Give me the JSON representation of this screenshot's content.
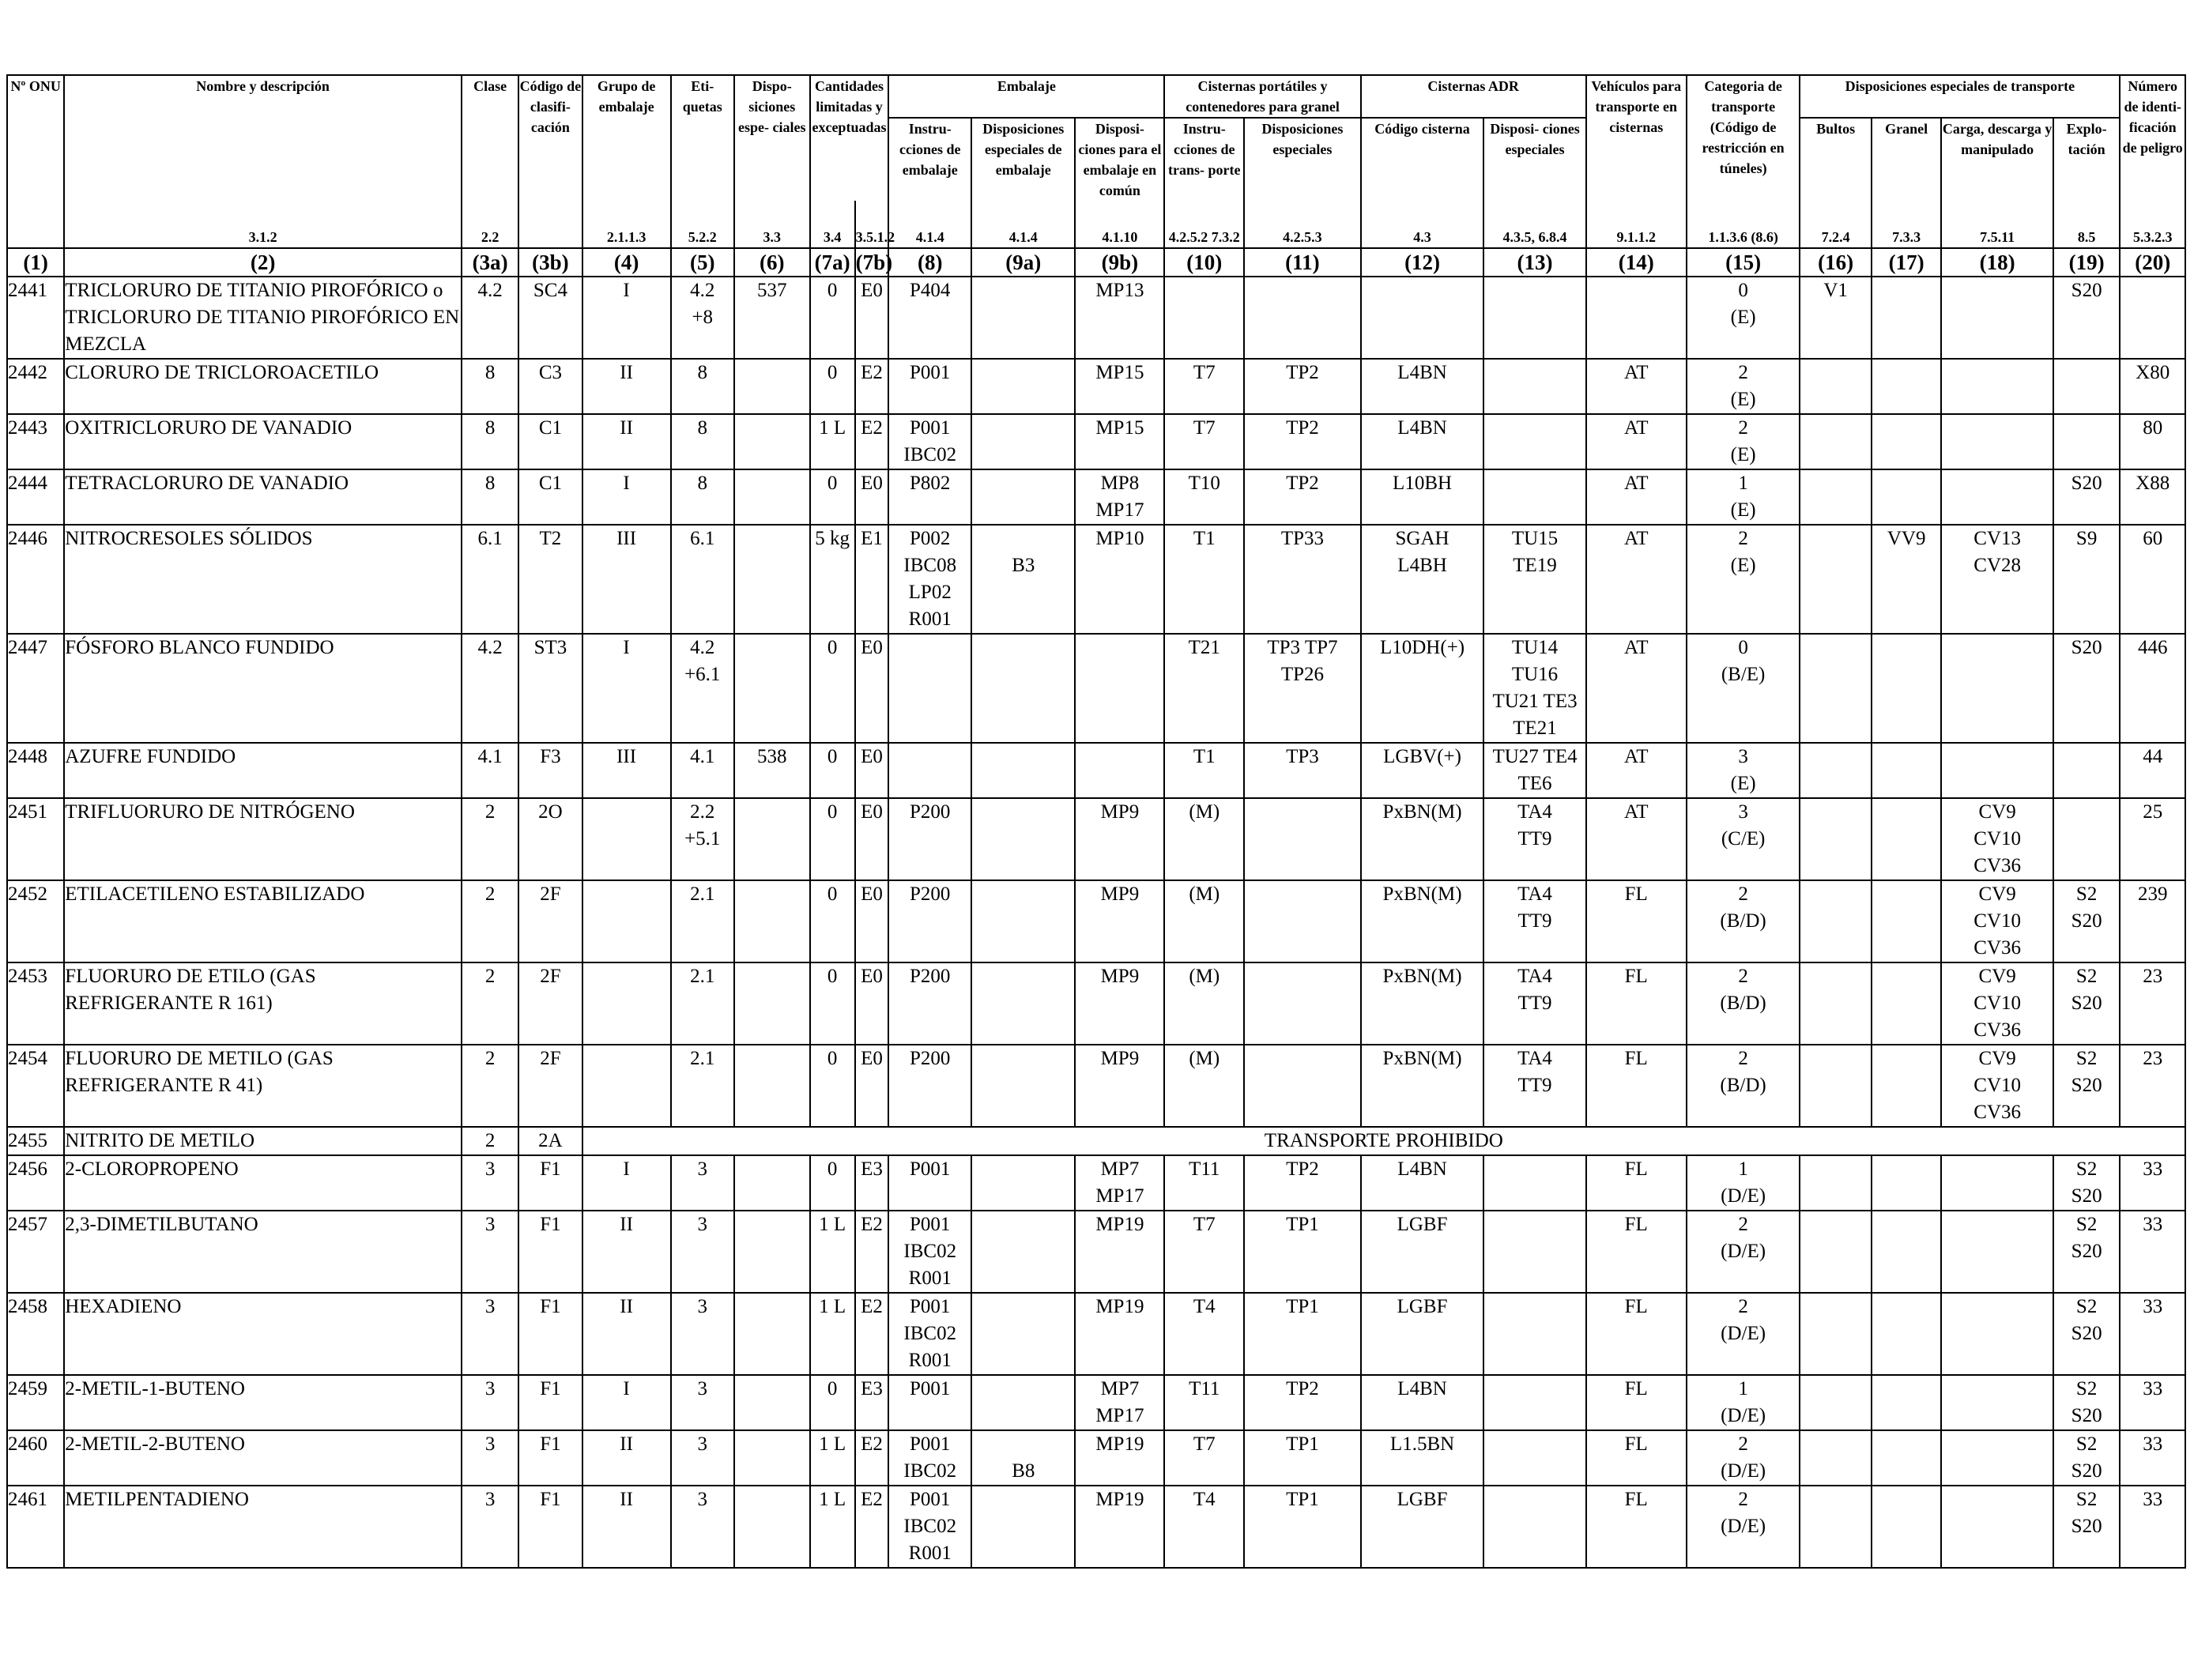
{
  "headers": {
    "un": "Nº ONU",
    "name": "Nombre y descripción",
    "class": "Clase",
    "code": "Código de clasifi- cación",
    "pg": "Grupo de embalaje",
    "labels": "Eti- quetas",
    "sp": "Dispo- siciones espe- ciales",
    "lq": "Cantidades limitadas y exceptuadas",
    "packaging": "Embalaje",
    "pi": "Instru- cciones de embalaje",
    "psp": "Disposiciones especiales de embalaje",
    "mp": "Disposi- ciones para el embalaje en común",
    "portable": "Cisternas portátiles y contenedores para granel",
    "tinstr": "Instru- cciones de trans- porte",
    "tsp": "Disposiciones especiales",
    "adr": "Cisternas ADR",
    "tcode": "Código cisterna",
    "adrsp": "Disposi- ciones especiales",
    "veh": "Vehículos para transporte en cisternas",
    "cat": "Categoria de transporte (Código de restricción en túneles)",
    "special": "Disposiciones especiales de transporte",
    "bultos": "Bultos",
    "granel": "Granel",
    "carga": "Carga, descarga y manipulado",
    "explo": "Explo- tación",
    "hazid": "Número de identi- ficación de peligro"
  },
  "refs": [
    "3.1.2",
    "2.2",
    "2.1.1.3",
    "5.2.2",
    "3.3",
    "3.4",
    "3.5.1.2",
    "4.1.4",
    "4.1.4",
    "4.1.10",
    "4.2.5.2 7.3.2",
    "4.2.5.3",
    "4.3",
    "4.3.5, 6.8.4",
    "9.1.1.2",
    "1.1.3.6 (8.6)",
    "7.2.4",
    "7.3.3",
    "7.5.11",
    "8.5",
    "5.3.2.3"
  ],
  "colnums": [
    "(1)",
    "(2)",
    "(3a)",
    "(3b)",
    "(4)",
    "(5)",
    "(6)",
    "(7a)",
    "(7b)",
    "(8)",
    "(9a)",
    "(9b)",
    "(10)",
    "(11)",
    "(12)",
    "(13)",
    "(14)",
    "(15)",
    "(16)",
    "(17)",
    "(18)",
    "(19)",
    "(20)"
  ],
  "prohibited_text": "TRANSPORTE PROHIBIDO",
  "rows": [
    {
      "un": "2441",
      "name": "TRICLORURO DE TITANIO PIROFÓRICO o TRICLORURO DE TITANIO PIROFÓRICO EN MEZCLA",
      "c3a": "4.2",
      "c3b": "SC4",
      "c4": "I",
      "c5": [
        "4.2",
        "+8"
      ],
      "c6": "537",
      "c7a": "0",
      "c7b": "E0",
      "c8": [
        "P404"
      ],
      "c9a": [],
      "c9b": [
        "MP13"
      ],
      "c10": [],
      "c11": [],
      "c12": [],
      "c13": [],
      "c14": "",
      "c15": [
        "0",
        "(E)"
      ],
      "c16": "V1",
      "c17": "",
      "c18": [],
      "c19": [
        "S20"
      ],
      "c20": ""
    },
    {
      "un": "2442",
      "name": "CLORURO DE TRICLOROACETILO",
      "c3a": "8",
      "c3b": "C3",
      "c4": "II",
      "c5": [
        "8"
      ],
      "c6": "",
      "c7a": "0",
      "c7b": "E2",
      "c8": [
        "P001"
      ],
      "c9a": [],
      "c9b": [
        "MP15"
      ],
      "c10": [
        "T7"
      ],
      "c11": [
        "TP2"
      ],
      "c12": [
        "L4BN"
      ],
      "c13": [],
      "c14": "AT",
      "c15": [
        "2",
        "(E)"
      ],
      "c16": "",
      "c17": "",
      "c18": [],
      "c19": [],
      "c20": "X80"
    },
    {
      "un": "2443",
      "name": "OXITRICLORURO DE VANADIO",
      "c3a": "8",
      "c3b": "C1",
      "c4": "II",
      "c5": [
        "8"
      ],
      "c6": "",
      "c7a": "1 L",
      "c7b": "E2",
      "c8": [
        "P001",
        "IBC02"
      ],
      "c9a": [],
      "c9b": [
        "MP15"
      ],
      "c10": [
        "T7"
      ],
      "c11": [
        "TP2"
      ],
      "c12": [
        "L4BN"
      ],
      "c13": [],
      "c14": "AT",
      "c15": [
        "2",
        "(E)"
      ],
      "c16": "",
      "c17": "",
      "c18": [],
      "c19": [],
      "c20": "80"
    },
    {
      "un": "2444",
      "name": "TETRACLORURO DE VANADIO",
      "c3a": "8",
      "c3b": "C1",
      "c4": "I",
      "c5": [
        "8"
      ],
      "c6": "",
      "c7a": "0",
      "c7b": "E0",
      "c8": [
        "P802"
      ],
      "c9a": [],
      "c9b": [
        "MP8",
        "MP17"
      ],
      "c10": [
        "T10"
      ],
      "c11": [
        "TP2"
      ],
      "c12": [
        "L10BH"
      ],
      "c13": [],
      "c14": "AT",
      "c15": [
        "1",
        "(E)"
      ],
      "c16": "",
      "c17": "",
      "c18": [],
      "c19": [
        "S20"
      ],
      "c20": "X88"
    },
    {
      "un": "2446",
      "name": "NITROCRESOLES SÓLIDOS",
      "c3a": "6.1",
      "c3b": "T2",
      "c4": "III",
      "c5": [
        "6.1"
      ],
      "c6": "",
      "c7a": "5 kg",
      "c7b": "E1",
      "c8": [
        "P002",
        "IBC08",
        "LP02",
        "R001"
      ],
      "c9a": [
        "",
        "B3"
      ],
      "c9b": [
        "MP10"
      ],
      "c10": [
        "T1"
      ],
      "c11": [
        "TP33"
      ],
      "c12": [
        "SGAH",
        "L4BH"
      ],
      "c13": [
        "TU15",
        "TE19"
      ],
      "c14": "AT",
      "c15": [
        "2",
        "(E)"
      ],
      "c16": "",
      "c17": "VV9",
      "c18": [
        "CV13",
        "CV28"
      ],
      "c19": [
        "S9"
      ],
      "c20": "60"
    },
    {
      "un": "2447",
      "name": "FÓSFORO BLANCO FUNDIDO",
      "c3a": "4.2",
      "c3b": "ST3",
      "c4": "I",
      "c5": [
        "4.2",
        "+6.1"
      ],
      "c6": "",
      "c7a": "0",
      "c7b": "E0",
      "c8": [],
      "c9a": [],
      "c9b": [],
      "c10": [
        "T21"
      ],
      "c11": [
        "TP3 TP7",
        "TP26"
      ],
      "c12": [
        "L10DH(+)"
      ],
      "c13": [
        "TU14",
        "TU16",
        "TU21 TE3",
        "TE21"
      ],
      "c14": "AT",
      "c15": [
        "0",
        "(B/E)"
      ],
      "c16": "",
      "c17": "",
      "c18": [],
      "c19": [
        "S20"
      ],
      "c20": "446"
    },
    {
      "un": "2448",
      "name": "AZUFRE FUNDIDO",
      "c3a": "4.1",
      "c3b": "F3",
      "c4": "III",
      "c5": [
        "4.1"
      ],
      "c6": "538",
      "c7a": "0",
      "c7b": "E0",
      "c8": [],
      "c9a": [],
      "c9b": [],
      "c10": [
        "T1"
      ],
      "c11": [
        "TP3"
      ],
      "c12": [
        "LGBV(+)"
      ],
      "c13": [
        "TU27 TE4",
        "TE6"
      ],
      "c14": "AT",
      "c15": [
        "3",
        "(E)"
      ],
      "c16": "",
      "c17": "",
      "c18": [],
      "c19": [],
      "c20": "44"
    },
    {
      "un": "2451",
      "name": "TRIFLUORURO DE NITRÓGENO",
      "c3a": "2",
      "c3b": "2O",
      "c4": "",
      "c5": [
        "2.2",
        "+5.1"
      ],
      "c6": "",
      "c7a": "0",
      "c7b": "E0",
      "c8": [
        "P200"
      ],
      "c9a": [],
      "c9b": [
        "MP9"
      ],
      "c10": [
        "(M)"
      ],
      "c11": [],
      "c12": [
        "PxBN(M)"
      ],
      "c13": [
        "TA4",
        "TT9"
      ],
      "c14": "AT",
      "c15": [
        "3",
        "(C/E)"
      ],
      "c16": "",
      "c17": "",
      "c18": [
        "CV9",
        "CV10",
        "CV36"
      ],
      "c19": [],
      "c20": "25"
    },
    {
      "un": "2452",
      "name": "ETILACETILENO ESTABILIZADO",
      "c3a": "2",
      "c3b": "2F",
      "c4": "",
      "c5": [
        "2.1"
      ],
      "c6": "",
      "c7a": "0",
      "c7b": "E0",
      "c8": [
        "P200"
      ],
      "c9a": [],
      "c9b": [
        "MP9"
      ],
      "c10": [
        "(M)"
      ],
      "c11": [],
      "c12": [
        "PxBN(M)"
      ],
      "c13": [
        "TA4",
        "TT9"
      ],
      "c14": "FL",
      "c15": [
        "2",
        "(B/D)"
      ],
      "c16": "",
      "c17": "",
      "c18": [
        "CV9",
        "CV10",
        "CV36"
      ],
      "c19": [
        "S2",
        "S20"
      ],
      "c20": "239"
    },
    {
      "un": "2453",
      "name": "FLUORURO DE ETILO (GAS REFRIGERANTE R 161)",
      "c3a": "2",
      "c3b": "2F",
      "c4": "",
      "c5": [
        "2.1"
      ],
      "c6": "",
      "c7a": "0",
      "c7b": "E0",
      "c8": [
        "P200"
      ],
      "c9a": [],
      "c9b": [
        "MP9"
      ],
      "c10": [
        "(M)"
      ],
      "c11": [],
      "c12": [
        "PxBN(M)"
      ],
      "c13": [
        "TA4",
        "TT9"
      ],
      "c14": "FL",
      "c15": [
        "2",
        "(B/D)"
      ],
      "c16": "",
      "c17": "",
      "c18": [
        "CV9",
        "CV10",
        "CV36"
      ],
      "c19": [
        "S2",
        "S20"
      ],
      "c20": "23"
    },
    {
      "un": "2454",
      "name": "FLUORURO DE METILO (GAS REFRIGERANTE R 41)",
      "c3a": "2",
      "c3b": "2F",
      "c4": "",
      "c5": [
        "2.1"
      ],
      "c6": "",
      "c7a": "0",
      "c7b": "E0",
      "c8": [
        "P200"
      ],
      "c9a": [],
      "c9b": [
        "MP9"
      ],
      "c10": [
        "(M)"
      ],
      "c11": [],
      "c12": [
        "PxBN(M)"
      ],
      "c13": [
        "TA4",
        "TT9"
      ],
      "c14": "FL",
      "c15": [
        "2",
        "(B/D)"
      ],
      "c16": "",
      "c17": "",
      "c18": [
        "CV9",
        "CV10",
        "CV36"
      ],
      "c19": [
        "S2",
        "S20"
      ],
      "c20": "23"
    },
    {
      "un": "2455",
      "name": "NITRITO DE METILO",
      "c3a": "2",
      "c3b": "2A",
      "prohibited": true
    },
    {
      "un": "2456",
      "name": "2-CLOROPROPENO",
      "c3a": "3",
      "c3b": "F1",
      "c4": "I",
      "c5": [
        "3"
      ],
      "c6": "",
      "c7a": "0",
      "c7b": "E3",
      "c8": [
        "P001"
      ],
      "c9a": [],
      "c9b": [
        "MP7",
        "MP17"
      ],
      "c10": [
        "T11"
      ],
      "c11": [
        "TP2"
      ],
      "c12": [
        "L4BN"
      ],
      "c13": [],
      "c14": "FL",
      "c15": [
        "1",
        "(D/E)"
      ],
      "c16": "",
      "c17": "",
      "c18": [],
      "c19": [
        "S2",
        "S20"
      ],
      "c20": "33"
    },
    {
      "un": "2457",
      "name": "2,3-DIMETILBUTANO",
      "c3a": "3",
      "c3b": "F1",
      "c4": "II",
      "c5": [
        "3"
      ],
      "c6": "",
      "c7a": "1 L",
      "c7b": "E2",
      "c8": [
        "P001",
        "IBC02",
        "R001"
      ],
      "c9a": [],
      "c9b": [
        "MP19"
      ],
      "c10": [
        "T7"
      ],
      "c11": [
        "TP1"
      ],
      "c12": [
        "LGBF"
      ],
      "c13": [],
      "c14": "FL",
      "c15": [
        "2",
        "(D/E)"
      ],
      "c16": "",
      "c17": "",
      "c18": [],
      "c19": [
        "S2",
        "S20"
      ],
      "c20": "33"
    },
    {
      "un": "2458",
      "name": "HEXADIENO",
      "c3a": "3",
      "c3b": "F1",
      "c4": "II",
      "c5": [
        "3"
      ],
      "c6": "",
      "c7a": "1 L",
      "c7b": "E2",
      "c8": [
        "P001",
        "IBC02",
        "R001"
      ],
      "c9a": [],
      "c9b": [
        "MP19"
      ],
      "c10": [
        "T4"
      ],
      "c11": [
        "TP1"
      ],
      "c12": [
        "LGBF"
      ],
      "c13": [],
      "c14": "FL",
      "c15": [
        "2",
        "(D/E)"
      ],
      "c16": "",
      "c17": "",
      "c18": [],
      "c19": [
        "S2",
        "S20"
      ],
      "c20": "33"
    },
    {
      "un": "2459",
      "name": "2-METIL-1-BUTENO",
      "c3a": "3",
      "c3b": "F1",
      "c4": "I",
      "c5": [
        "3"
      ],
      "c6": "",
      "c7a": "0",
      "c7b": "E3",
      "c8": [
        "P001"
      ],
      "c9a": [],
      "c9b": [
        "MP7",
        "MP17"
      ],
      "c10": [
        "T11"
      ],
      "c11": [
        "TP2"
      ],
      "c12": [
        "L4BN"
      ],
      "c13": [],
      "c14": "FL",
      "c15": [
        "1",
        "(D/E)"
      ],
      "c16": "",
      "c17": "",
      "c18": [],
      "c19": [
        "S2",
        "S20"
      ],
      "c20": "33"
    },
    {
      "un": "2460",
      "name": "2-METIL-2-BUTENO",
      "c3a": "3",
      "c3b": "F1",
      "c4": "II",
      "c5": [
        "3"
      ],
      "c6": "",
      "c7a": "1 L",
      "c7b": "E2",
      "c8": [
        "P001",
        "IBC02"
      ],
      "c9a": [
        "",
        "B8"
      ],
      "c9b": [
        "MP19"
      ],
      "c10": [
        "T7"
      ],
      "c11": [
        "TP1"
      ],
      "c12": [
        "L1.5BN"
      ],
      "c13": [],
      "c14": "FL",
      "c15": [
        "2",
        "(D/E)"
      ],
      "c16": "",
      "c17": "",
      "c18": [],
      "c19": [
        "S2",
        "S20"
      ],
      "c20": "33"
    },
    {
      "un": "2461",
      "name": "METILPENTADIENO",
      "c3a": "3",
      "c3b": "F1",
      "c4": "II",
      "c5": [
        "3"
      ],
      "c6": "",
      "c7a": "1 L",
      "c7b": "E2",
      "c8": [
        "P001",
        "IBC02",
        "R001"
      ],
      "c9a": [],
      "c9b": [
        "MP19"
      ],
      "c10": [
        "T4"
      ],
      "c11": [
        "TP1"
      ],
      "c12": [
        "LGBF"
      ],
      "c13": [],
      "c14": "FL",
      "c15": [
        "2",
        "(D/E)"
      ],
      "c16": "",
      "c17": "",
      "c18": [],
      "c19": [
        "S2",
        "S20"
      ],
      "c20": "33"
    }
  ]
}
